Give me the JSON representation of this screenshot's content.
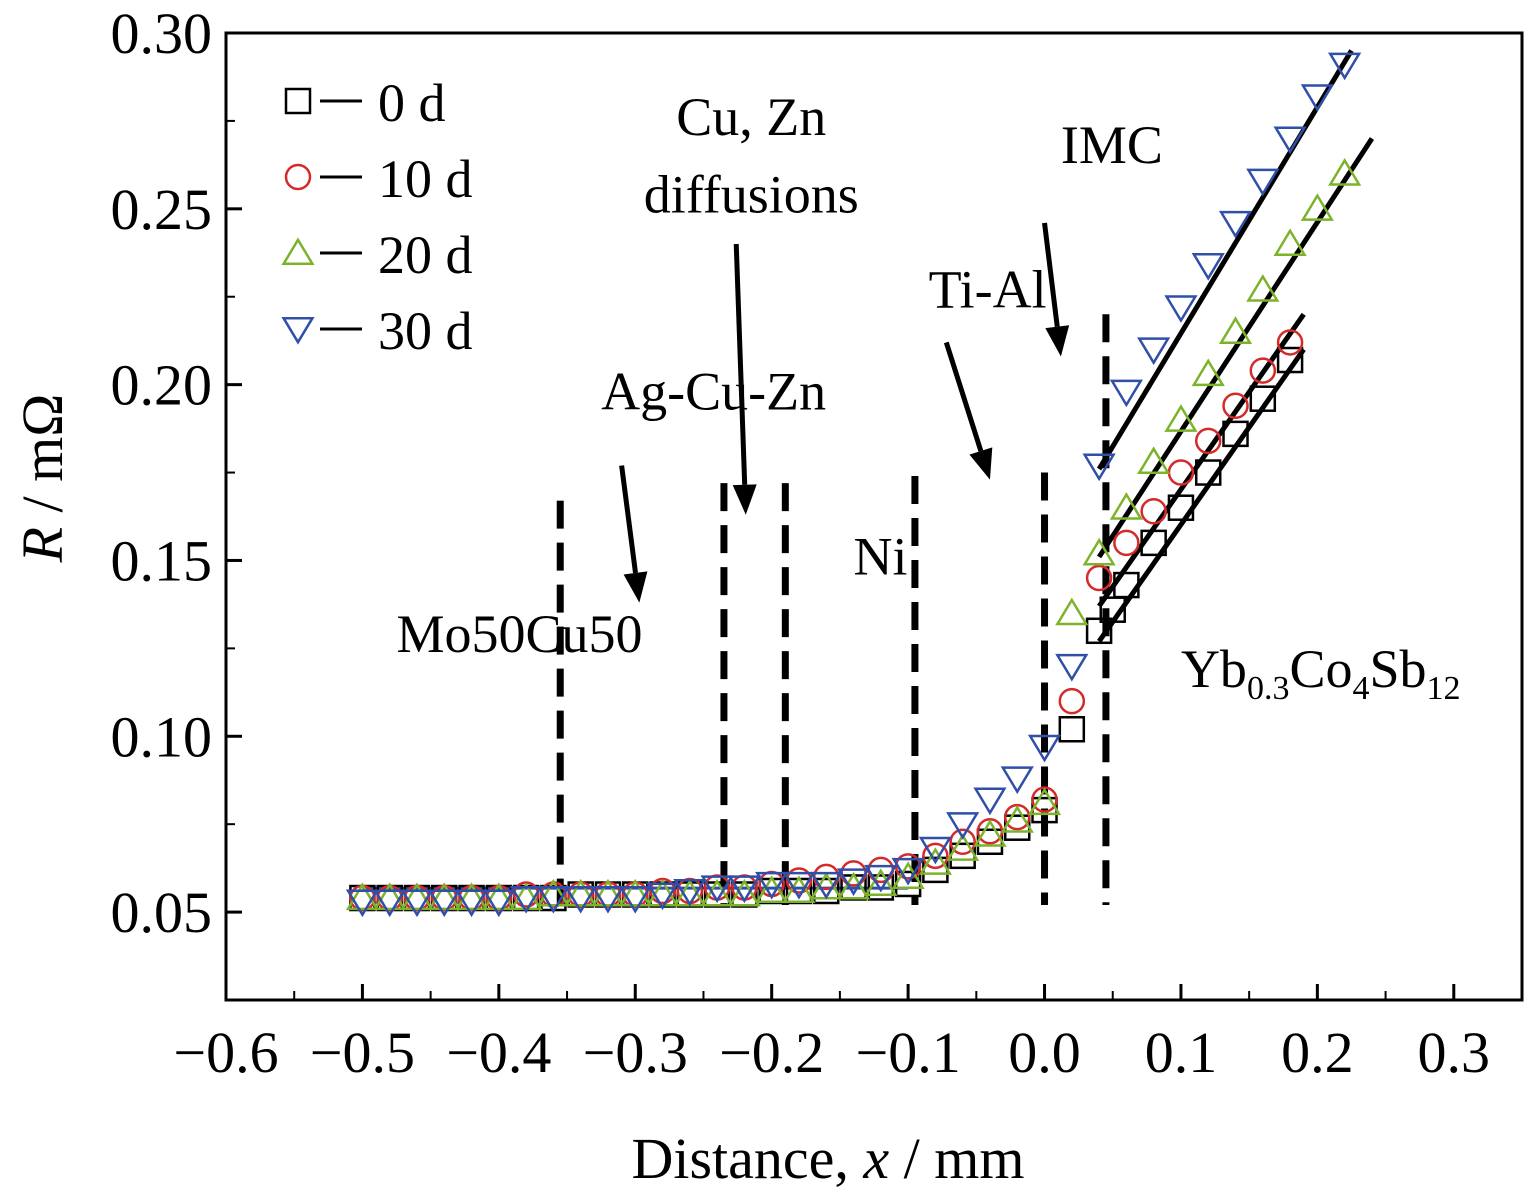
{
  "chart_data": {
    "type": "scatter",
    "xlabel": {
      "main": "Distance, ",
      "var": "x",
      "unit": " / mm"
    },
    "ylabel": {
      "var": "R",
      "unit": " / mΩ"
    },
    "xlim": [
      -0.6,
      0.35
    ],
    "ylim": [
      0.025,
      0.3
    ],
    "xticks": [
      -0.6,
      -0.5,
      -0.4,
      -0.3,
      -0.2,
      -0.1,
      0.0,
      0.1,
      0.2,
      0.3
    ],
    "xtick_labels": [
      "−0.6",
      "−0.5",
      "−0.4",
      "−0.3",
      "−0.2",
      "−0.1",
      "0.0",
      "0.1",
      "0.2",
      "0.3"
    ],
    "yticks": [
      0.05,
      0.1,
      0.15,
      0.2,
      0.25,
      0.3
    ],
    "ytick_labels": [
      "0.05",
      "0.10",
      "0.15",
      "0.20",
      "0.25",
      "0.30"
    ],
    "grid": false,
    "legend_position": "top-left",
    "series": [
      {
        "name": "0 d",
        "marker": "square",
        "color": "#000000",
        "x": [
          -0.5,
          -0.48,
          -0.46,
          -0.44,
          -0.42,
          -0.4,
          -0.38,
          -0.36,
          -0.34,
          -0.32,
          -0.3,
          -0.28,
          -0.26,
          -0.24,
          -0.22,
          -0.2,
          -0.18,
          -0.16,
          -0.14,
          -0.12,
          -0.1,
          -0.08,
          -0.06,
          -0.04,
          -0.02,
          0.0,
          0.02,
          0.04,
          0.05,
          0.06,
          0.08,
          0.1,
          0.12,
          0.14,
          0.16,
          0.18
        ],
        "y": [
          0.054,
          0.054,
          0.054,
          0.054,
          0.054,
          0.054,
          0.054,
          0.054,
          0.055,
          0.055,
          0.055,
          0.055,
          0.055,
          0.055,
          0.055,
          0.056,
          0.056,
          0.056,
          0.057,
          0.057,
          0.058,
          0.062,
          0.066,
          0.07,
          0.074,
          0.079,
          0.102,
          0.13,
          0.136,
          0.143,
          0.155,
          0.165,
          0.175,
          0.186,
          0.196,
          0.207
        ]
      },
      {
        "name": "10 d",
        "marker": "circle",
        "color": "#d42a2a",
        "x": [
          -0.5,
          -0.48,
          -0.46,
          -0.44,
          -0.42,
          -0.4,
          -0.38,
          -0.36,
          -0.34,
          -0.32,
          -0.3,
          -0.28,
          -0.26,
          -0.24,
          -0.22,
          -0.2,
          -0.18,
          -0.16,
          -0.14,
          -0.12,
          -0.1,
          -0.08,
          -0.06,
          -0.04,
          -0.02,
          0.0,
          0.02,
          0.04,
          0.06,
          0.08,
          0.1,
          0.12,
          0.14,
          0.16,
          0.18
        ],
        "y": [
          0.054,
          0.054,
          0.054,
          0.054,
          0.054,
          0.054,
          0.055,
          0.055,
          0.055,
          0.055,
          0.055,
          0.056,
          0.056,
          0.057,
          0.057,
          0.058,
          0.059,
          0.06,
          0.061,
          0.062,
          0.063,
          0.066,
          0.07,
          0.073,
          0.077,
          0.082,
          0.11,
          0.145,
          0.155,
          0.164,
          0.175,
          0.184,
          0.194,
          0.204,
          0.212
        ]
      },
      {
        "name": "20 d",
        "marker": "triangle-up",
        "color": "#7db32a",
        "x": [
          -0.5,
          -0.48,
          -0.46,
          -0.44,
          -0.42,
          -0.4,
          -0.38,
          -0.36,
          -0.34,
          -0.32,
          -0.3,
          -0.28,
          -0.26,
          -0.24,
          -0.22,
          -0.2,
          -0.18,
          -0.16,
          -0.14,
          -0.12,
          -0.1,
          -0.08,
          -0.06,
          -0.04,
          -0.02,
          0.0,
          0.02,
          0.04,
          0.06,
          0.08,
          0.1,
          0.12,
          0.14,
          0.16,
          0.18,
          0.2,
          0.22
        ],
        "y": [
          0.054,
          0.054,
          0.054,
          0.054,
          0.054,
          0.054,
          0.054,
          0.055,
          0.055,
          0.055,
          0.055,
          0.055,
          0.055,
          0.055,
          0.055,
          0.056,
          0.056,
          0.057,
          0.057,
          0.058,
          0.06,
          0.064,
          0.068,
          0.072,
          0.076,
          0.081,
          0.135,
          0.152,
          0.165,
          0.178,
          0.19,
          0.203,
          0.215,
          0.227,
          0.24,
          0.25,
          0.26
        ]
      },
      {
        "name": "30 d",
        "marker": "triangle-down",
        "color": "#2f4fa8",
        "x": [
          -0.5,
          -0.48,
          -0.46,
          -0.44,
          -0.42,
          -0.4,
          -0.38,
          -0.36,
          -0.34,
          -0.32,
          -0.3,
          -0.28,
          -0.26,
          -0.24,
          -0.22,
          -0.2,
          -0.18,
          -0.16,
          -0.14,
          -0.12,
          -0.1,
          -0.08,
          -0.06,
          -0.04,
          -0.02,
          0.0,
          0.02,
          0.04,
          0.06,
          0.08,
          0.1,
          0.12,
          0.14,
          0.16,
          0.18,
          0.2,
          0.22
        ],
        "y": [
          0.053,
          0.053,
          0.053,
          0.053,
          0.053,
          0.053,
          0.054,
          0.054,
          0.054,
          0.054,
          0.054,
          0.055,
          0.056,
          0.057,
          0.057,
          0.058,
          0.058,
          0.058,
          0.059,
          0.06,
          0.062,
          0.068,
          0.075,
          0.082,
          0.088,
          0.097,
          0.12,
          0.177,
          0.198,
          0.21,
          0.222,
          0.234,
          0.246,
          0.258,
          0.27,
          0.282,
          0.291
        ]
      }
    ],
    "fit_lines": [
      {
        "x1": 0.04,
        "y1": 0.176,
        "x2": 0.225,
        "y2": 0.295
      },
      {
        "x1": 0.04,
        "y1": 0.151,
        "x2": 0.24,
        "y2": 0.27
      },
      {
        "x1": 0.04,
        "y1": 0.137,
        "x2": 0.19,
        "y2": 0.22
      },
      {
        "x1": 0.04,
        "y1": 0.127,
        "x2": 0.19,
        "y2": 0.21
      }
    ],
    "baseline_line": {
      "x1": -0.5,
      "y1": 0.0568,
      "x2": -0.1,
      "y2": 0.0568
    },
    "boundaries": [
      {
        "x": -0.355,
        "y_top": 0.167
      },
      {
        "x": -0.235,
        "y_top": 0.172
      },
      {
        "x": -0.19,
        "y_top": 0.172
      },
      {
        "x": -0.095,
        "y_top": 0.174
      },
      {
        "x": 0.0,
        "y_top": 0.175
      },
      {
        "x": 0.045,
        "y_top": 0.22
      }
    ],
    "annotations": [
      {
        "text": "Mo50Cu50",
        "x": -0.475,
        "y": 0.124
      },
      {
        "text": "Ag-Cu-Zn",
        "x": -0.325,
        "y": 0.193
      },
      {
        "text": "Ni",
        "x": -0.14,
        "y": 0.146
      },
      {
        "text": "Ti-Al",
        "x": -0.085,
        "y": 0.222
      },
      {
        "text": "IMC",
        "x": 0.012,
        "y": 0.263
      }
    ],
    "annotation_multiline": {
      "lines": [
        "Cu, Zn",
        "diffusions"
      ],
      "x": -0.215,
      "y1": 0.271,
      "y2": 0.249
    },
    "annotation_formula": {
      "base1": "Yb",
      "sub1": "0.3",
      "base2": "Co",
      "sub2": "4",
      "base3": "Sb",
      "sub3": "12",
      "x": 0.1,
      "y": 0.114
    },
    "arrows": [
      {
        "x1": -0.31,
        "y1": 0.177,
        "x2": -0.297,
        "y2": 0.138
      },
      {
        "x1": -0.226,
        "y1": 0.24,
        "x2": -0.219,
        "y2": 0.163
      },
      {
        "x1": -0.072,
        "y1": 0.212,
        "x2": -0.04,
        "y2": 0.173
      },
      {
        "x1": 0.0,
        "y1": 0.246,
        "x2": 0.012,
        "y2": 0.208
      }
    ]
  }
}
